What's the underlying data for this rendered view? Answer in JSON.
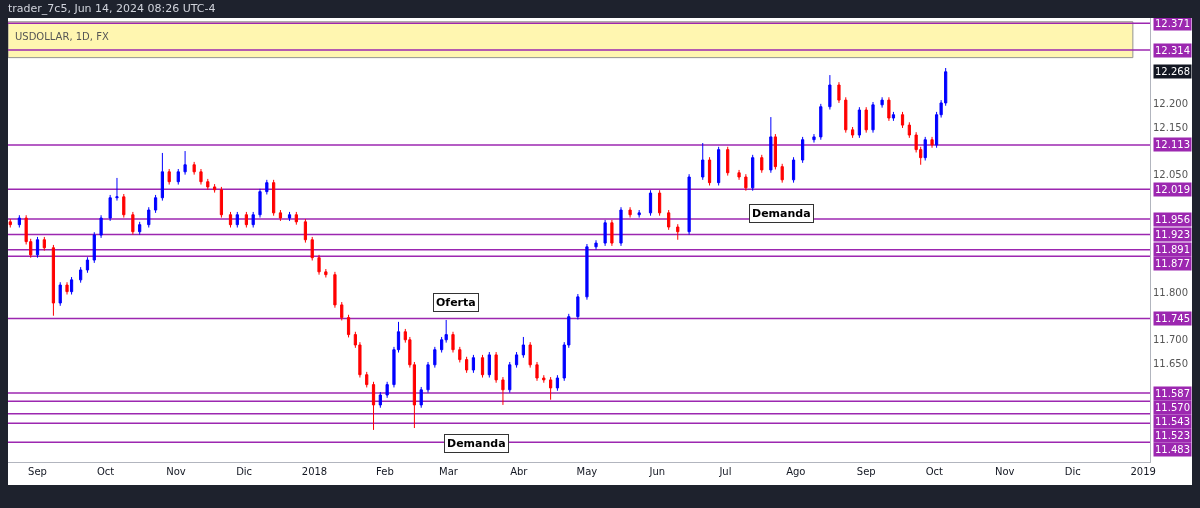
{
  "chart_data": {
    "type": "candlestick",
    "title": "trader_7c5, Jun 14, 2024 08:26 UTC-4",
    "subtitle": "USDOLLAR, 1D, FX",
    "x": [
      "2017-08-20",
      "2017-08-24",
      "2017-08-27",
      "2017-08-29",
      "2017-09-01",
      "2017-09-04",
      "2017-09-08",
      "2017-09-11",
      "2017-09-14",
      "2017-09-16",
      "2017-09-20",
      "2017-09-23",
      "2017-09-26",
      "2017-09-29",
      "2017-10-03",
      "2017-10-06",
      "2017-10-09",
      "2017-10-13",
      "2017-10-16",
      "2017-10-20",
      "2017-10-23",
      "2017-10-26",
      "2017-10-29",
      "2017-11-02",
      "2017-11-05",
      "2017-11-09",
      "2017-11-12",
      "2017-11-15",
      "2017-11-18",
      "2017-11-21",
      "2017-11-25",
      "2017-11-28",
      "2017-12-02",
      "2017-12-05",
      "2017-12-08",
      "2017-12-11",
      "2017-12-14",
      "2017-12-17",
      "2017-12-21",
      "2017-12-24",
      "2017-12-28",
      "2017-12-31",
      "2018-01-03",
      "2018-01-06",
      "2018-01-10",
      "2018-01-13",
      "2018-01-16",
      "2018-01-19",
      "2018-01-21",
      "2018-01-24",
      "2018-01-27",
      "2018-01-30",
      "2018-02-02",
      "2018-02-05",
      "2018-02-07",
      "2018-02-10",
      "2018-02-12",
      "2018-02-14",
      "2018-02-17",
      "2018-02-20",
      "2018-02-23",
      "2018-02-26",
      "2018-02-28",
      "2018-03-03",
      "2018-03-06",
      "2018-03-09",
      "2018-03-12",
      "2018-03-16",
      "2018-03-19",
      "2018-03-22",
      "2018-03-25",
      "2018-03-28",
      "2018-03-31",
      "2018-04-03",
      "2018-04-06",
      "2018-04-09",
      "2018-04-12",
      "2018-04-15",
      "2018-04-18",
      "2018-04-21",
      "2018-04-23",
      "2018-04-27",
      "2018-05-01",
      "2018-05-05",
      "2018-05-09",
      "2018-05-12",
      "2018-05-16",
      "2018-05-20",
      "2018-05-24",
      "2018-05-29",
      "2018-06-02",
      "2018-06-06",
      "2018-06-10",
      "2018-06-15",
      "2018-06-21",
      "2018-06-24",
      "2018-06-28",
      "2018-07-02",
      "2018-07-07",
      "2018-07-10",
      "2018-07-13",
      "2018-07-17",
      "2018-07-21",
      "2018-07-23",
      "2018-07-26",
      "2018-07-31",
      "2018-08-04",
      "2018-08-09",
      "2018-08-12",
      "2018-08-16",
      "2018-08-20",
      "2018-08-23",
      "2018-08-26",
      "2018-08-29",
      "2018-09-01",
      "2018-09-04",
      "2018-09-08",
      "2018-09-11",
      "2018-09-13",
      "2018-09-17",
      "2018-09-20",
      "2018-09-23",
      "2018-09-25",
      "2018-09-27",
      "2018-09-30",
      "2018-10-02",
      "2018-10-04",
      "2018-10-06"
    ],
    "ohlc": [
      [
        11.95,
        11.956,
        11.938,
        11.944
      ],
      [
        11.944,
        11.964,
        11.938,
        11.958
      ],
      [
        11.958,
        11.964,
        11.902,
        11.908
      ],
      [
        11.908,
        11.914,
        11.874,
        11.88
      ],
      [
        11.88,
        11.918,
        11.874,
        11.912
      ],
      [
        11.912,
        11.918,
        11.889,
        11.895
      ],
      [
        11.895,
        11.901,
        11.751,
        11.778
      ],
      [
        11.778,
        11.822,
        11.772,
        11.816
      ],
      [
        11.816,
        11.822,
        11.796,
        11.802
      ],
      [
        11.802,
        11.833,
        11.796,
        11.827
      ],
      [
        11.827,
        11.854,
        11.821,
        11.848
      ],
      [
        11.848,
        11.875,
        11.842,
        11.869
      ],
      [
        11.869,
        11.928,
        11.863,
        11.922
      ],
      [
        11.922,
        11.964,
        11.916,
        11.958
      ],
      [
        11.958,
        12.007,
        11.952,
        12.001
      ],
      [
        12.001,
        12.043,
        11.995,
        12.003
      ],
      [
        12.003,
        12.009,
        11.959,
        11.965
      ],
      [
        11.965,
        11.971,
        11.923,
        11.929
      ],
      [
        11.929,
        11.95,
        11.923,
        11.944
      ],
      [
        11.944,
        11.981,
        11.938,
        11.975
      ],
      [
        11.975,
        12.007,
        11.969,
        12.001
      ],
      [
        12.001,
        12.096,
        11.995,
        12.056
      ],
      [
        12.056,
        12.062,
        12.029,
        12.035
      ],
      [
        12.035,
        12.062,
        12.029,
        12.056
      ],
      [
        12.056,
        12.1,
        12.05,
        12.071
      ],
      [
        12.071,
        12.077,
        12.05,
        12.056
      ],
      [
        12.056,
        12.062,
        12.029,
        12.035
      ],
      [
        12.035,
        12.041,
        12.018,
        12.024
      ],
      [
        12.024,
        12.03,
        12.012,
        12.018
      ],
      [
        12.018,
        12.024,
        11.959,
        11.965
      ],
      [
        11.965,
        11.971,
        11.938,
        11.944
      ],
      [
        11.944,
        11.971,
        11.938,
        11.965
      ],
      [
        11.965,
        11.971,
        11.938,
        11.944
      ],
      [
        11.944,
        11.971,
        11.938,
        11.965
      ],
      [
        11.965,
        12.02,
        11.959,
        12.014
      ],
      [
        12.014,
        12.039,
        12.008,
        12.033
      ],
      [
        12.033,
        12.039,
        11.963,
        11.969
      ],
      [
        11.969,
        11.975,
        11.952,
        11.958
      ],
      [
        11.958,
        11.971,
        11.952,
        11.965
      ],
      [
        11.965,
        11.971,
        11.944,
        11.95
      ],
      [
        11.95,
        11.956,
        11.906,
        11.912
      ],
      [
        11.912,
        11.918,
        11.868,
        11.874
      ],
      [
        11.874,
        11.88,
        11.838,
        11.844
      ],
      [
        11.844,
        11.85,
        11.832,
        11.838
      ],
      [
        11.838,
        11.844,
        11.768,
        11.774
      ],
      [
        11.774,
        11.78,
        11.741,
        11.747
      ],
      [
        11.747,
        11.753,
        11.705,
        11.711
      ],
      [
        11.711,
        11.717,
        11.683,
        11.689
      ],
      [
        11.689,
        11.695,
        11.62,
        11.626
      ],
      [
        11.626,
        11.632,
        11.599,
        11.605
      ],
      [
        11.605,
        11.611,
        11.509,
        11.562
      ],
      [
        11.562,
        11.589,
        11.556,
        11.583
      ],
      [
        11.583,
        11.611,
        11.577,
        11.605
      ],
      [
        11.605,
        11.685,
        11.599,
        11.679
      ],
      [
        11.679,
        11.738,
        11.673,
        11.717
      ],
      [
        11.717,
        11.723,
        11.694,
        11.7
      ],
      [
        11.7,
        11.706,
        11.641,
        11.647
      ],
      [
        11.647,
        11.653,
        11.513,
        11.562
      ],
      [
        11.562,
        11.6,
        11.556,
        11.594
      ],
      [
        11.594,
        11.653,
        11.588,
        11.647
      ],
      [
        11.647,
        11.685,
        11.641,
        11.679
      ],
      [
        11.679,
        11.706,
        11.673,
        11.7
      ],
      [
        11.7,
        11.742,
        11.694,
        11.711
      ],
      [
        11.711,
        11.717,
        11.673,
        11.679
      ],
      [
        11.679,
        11.685,
        11.652,
        11.658
      ],
      [
        11.658,
        11.664,
        11.63,
        11.636
      ],
      [
        11.636,
        11.668,
        11.63,
        11.662
      ],
      [
        11.662,
        11.668,
        11.62,
        11.626
      ],
      [
        11.626,
        11.674,
        11.62,
        11.668
      ],
      [
        11.668,
        11.674,
        11.609,
        11.615
      ],
      [
        11.615,
        11.621,
        11.562,
        11.594
      ],
      [
        11.594,
        11.653,
        11.588,
        11.647
      ],
      [
        11.647,
        11.674,
        11.641,
        11.668
      ],
      [
        11.668,
        11.706,
        11.662,
        11.689
      ],
      [
        11.689,
        11.695,
        11.641,
        11.647
      ],
      [
        11.647,
        11.653,
        11.613,
        11.619
      ],
      [
        11.619,
        11.625,
        11.609,
        11.615
      ],
      [
        11.615,
        11.621,
        11.573,
        11.598
      ],
      [
        11.598,
        11.625,
        11.592,
        11.619
      ],
      [
        11.619,
        11.695,
        11.613,
        11.689
      ],
      [
        11.689,
        11.755,
        11.683,
        11.749
      ],
      [
        11.749,
        11.797,
        11.743,
        11.791
      ],
      [
        11.791,
        11.903,
        11.785,
        11.897
      ],
      [
        11.897,
        11.911,
        11.891,
        11.905
      ],
      [
        11.905,
        11.954,
        11.899,
        11.948
      ],
      [
        11.948,
        11.954,
        11.899,
        11.905
      ],
      [
        11.905,
        11.981,
        11.899,
        11.975
      ],
      [
        11.975,
        11.981,
        11.959,
        11.965
      ],
      [
        11.965,
        11.975,
        11.959,
        11.969
      ],
      [
        11.969,
        12.017,
        11.963,
        12.011
      ],
      [
        12.011,
        12.017,
        11.963,
        11.969
      ],
      [
        11.969,
        11.975,
        11.933,
        11.939
      ],
      [
        11.939,
        11.945,
        11.912,
        11.929
      ],
      [
        11.929,
        12.051,
        11.923,
        12.045
      ],
      [
        12.045,
        12.117,
        12.039,
        12.081
      ],
      [
        12.081,
        12.087,
        12.027,
        12.033
      ],
      [
        12.033,
        12.109,
        12.027,
        12.103
      ],
      [
        12.103,
        12.109,
        12.048,
        12.054
      ],
      [
        12.054,
        12.06,
        12.039,
        12.045
      ],
      [
        12.045,
        12.051,
        12.016,
        12.022
      ],
      [
        12.022,
        12.092,
        12.016,
        12.086
      ],
      [
        12.086,
        12.092,
        12.054,
        12.06
      ],
      [
        12.06,
        12.172,
        12.054,
        12.13
      ],
      [
        12.13,
        12.136,
        12.061,
        12.067
      ],
      [
        12.067,
        12.073,
        12.033,
        12.039
      ],
      [
        12.039,
        12.087,
        12.033,
        12.081
      ],
      [
        12.081,
        12.13,
        12.075,
        12.124
      ],
      [
        12.124,
        12.136,
        12.118,
        12.13
      ],
      [
        12.13,
        12.2,
        12.124,
        12.194
      ],
      [
        12.194,
        12.261,
        12.188,
        12.24
      ],
      [
        12.24,
        12.246,
        12.202,
        12.208
      ],
      [
        12.208,
        12.214,
        12.139,
        12.145
      ],
      [
        12.145,
        12.151,
        12.128,
        12.134
      ],
      [
        12.134,
        12.193,
        12.128,
        12.187
      ],
      [
        12.187,
        12.193,
        12.139,
        12.145
      ],
      [
        12.145,
        12.204,
        12.139,
        12.198
      ],
      [
        12.198,
        12.214,
        12.192,
        12.208
      ],
      [
        12.208,
        12.214,
        12.164,
        12.17
      ],
      [
        12.17,
        12.183,
        12.164,
        12.177
      ],
      [
        12.177,
        12.183,
        12.149,
        12.155
      ],
      [
        12.155,
        12.161,
        12.128,
        12.134
      ],
      [
        12.134,
        12.14,
        12.097,
        12.103
      ],
      [
        12.103,
        12.109,
        12.071,
        12.086
      ],
      [
        12.086,
        12.13,
        12.08,
        12.124
      ],
      [
        12.124,
        12.13,
        12.107,
        12.113
      ],
      [
        12.113,
        12.183,
        12.107,
        12.177
      ],
      [
        12.177,
        12.208,
        12.171,
        12.202
      ],
      [
        12.202,
        12.276,
        12.196,
        12.268
      ]
    ],
    "colors": [
      "#ff0000",
      "#0000ff",
      "#ff0000",
      "#ff0000",
      "#0000ff",
      "#ff0000",
      "#ff0000",
      "#0000ff",
      "#ff0000",
      "#0000ff",
      "#0000ff",
      "#0000ff",
      "#0000ff",
      "#0000ff",
      "#0000ff",
      "#0000ff",
      "#ff0000",
      "#ff0000",
      "#0000ff",
      "#0000ff",
      "#0000ff",
      "#0000ff",
      "#ff0000",
      "#0000ff",
      "#0000ff",
      "#ff0000",
      "#ff0000",
      "#ff0000",
      "#ff0000",
      "#ff0000",
      "#ff0000",
      "#0000ff",
      "#ff0000",
      "#0000ff",
      "#0000ff",
      "#0000ff",
      "#ff0000",
      "#ff0000",
      "#0000ff",
      "#ff0000",
      "#ff0000",
      "#ff0000",
      "#ff0000",
      "#ff0000",
      "#ff0000",
      "#ff0000",
      "#ff0000",
      "#ff0000",
      "#ff0000",
      "#ff0000",
      "#ff0000",
      "#0000ff",
      "#0000ff",
      "#0000ff",
      "#0000ff",
      "#ff0000",
      "#ff0000",
      "#ff0000",
      "#0000ff",
      "#0000ff",
      "#0000ff",
      "#0000ff",
      "#0000ff",
      "#ff0000",
      "#ff0000",
      "#ff0000",
      "#0000ff",
      "#ff0000",
      "#0000ff",
      "#ff0000",
      "#ff0000",
      "#0000ff",
      "#0000ff",
      "#0000ff",
      "#ff0000",
      "#ff0000",
      "#ff0000",
      "#ff0000",
      "#0000ff",
      "#0000ff",
      "#0000ff",
      "#0000ff",
      "#0000ff",
      "#0000ff",
      "#0000ff",
      "#ff0000",
      "#0000ff",
      "#ff0000",
      "#0000ff",
      "#0000ff",
      "#ff0000",
      "#ff0000",
      "#ff0000",
      "#0000ff",
      "#0000ff",
      "#ff0000",
      "#0000ff",
      "#ff0000",
      "#ff0000",
      "#ff0000",
      "#0000ff",
      "#ff0000",
      "#0000ff",
      "#ff0000",
      "#ff0000",
      "#0000ff",
      "#0000ff",
      "#0000ff",
      "#0000ff",
      "#0000ff",
      "#ff0000",
      "#ff0000",
      "#ff0000",
      "#0000ff",
      "#ff0000",
      "#0000ff",
      "#0000ff",
      "#ff0000",
      "#0000ff",
      "#ff0000",
      "#ff0000",
      "#ff0000",
      "#ff0000",
      "#0000ff",
      "#ff0000",
      "#0000ff",
      "#0000ff",
      "#0000ff"
    ],
    "xlim": [
      "2017-08-19",
      "2019-01-04"
    ],
    "xticks": [
      {
        "value": "2017-09-01",
        "label": "Sep"
      },
      {
        "value": "2017-10-01",
        "label": "Oct"
      },
      {
        "value": "2017-11-01",
        "label": "Nov"
      },
      {
        "value": "2017-12-01",
        "label": "Dic"
      },
      {
        "value": "2018-01-01",
        "label": "2018"
      },
      {
        "value": "2018-02-01",
        "label": "Feb"
      },
      {
        "value": "2018-03-01",
        "label": "Mar"
      },
      {
        "value": "2018-04-01",
        "label": "Abr"
      },
      {
        "value": "2018-05-01",
        "label": "May"
      },
      {
        "value": "2018-06-01",
        "label": "Jun"
      },
      {
        "value": "2018-07-01",
        "label": "Jul"
      },
      {
        "value": "2018-08-01",
        "label": "Ago"
      },
      {
        "value": "2018-09-01",
        "label": "Sep"
      },
      {
        "value": "2018-10-01",
        "label": "Oct"
      },
      {
        "value": "2018-11-01",
        "label": "Nov"
      },
      {
        "value": "2018-12-01",
        "label": "Dic"
      },
      {
        "value": "2019-01-01",
        "label": "2019"
      }
    ],
    "ylim": [
      11.441,
      12.382
    ],
    "yticks": [
      {
        "value": 11.65,
        "label": "11.650"
      },
      {
        "value": 11.7,
        "label": "11.700"
      },
      {
        "value": 11.8,
        "label": "11.800"
      },
      {
        "value": 12.05,
        "label": "12.050"
      },
      {
        "value": 12.15,
        "label": "12.150"
      },
      {
        "value": 12.2,
        "label": "12.200"
      }
    ],
    "ref_lines": [
      {
        "axis": "y",
        "value": 12.371,
        "label": "12.371",
        "color": "#9c27b0"
      },
      {
        "axis": "y",
        "value": 12.314,
        "label": "12.314",
        "color": "#9c27b0"
      },
      {
        "axis": "y",
        "value": 12.113,
        "label": "12.113",
        "color": "#9c27b0"
      },
      {
        "axis": "y",
        "value": 12.019,
        "label": "12.019",
        "color": "#9c27b0"
      },
      {
        "axis": "y",
        "value": 11.956,
        "label": "11.956",
        "color": "#9c27b0"
      },
      {
        "axis": "y",
        "value": 11.923,
        "label": "11.923",
        "color": "#9c27b0"
      },
      {
        "axis": "y",
        "value": 11.891,
        "label": "11.891",
        "color": "#9c27b0"
      },
      {
        "axis": "y",
        "value": 11.877,
        "label": "11.877",
        "color": "#9c27b0"
      },
      {
        "axis": "y",
        "value": 11.745,
        "label": "11.745",
        "color": "#9c27b0"
      },
      {
        "axis": "y",
        "value": 11.587,
        "label": "11.587",
        "color": "#9c27b0"
      },
      {
        "axis": "y",
        "value": 11.57,
        "label": "11.570",
        "color": "#9c27b0"
      },
      {
        "axis": "y",
        "value": 11.543,
        "label": "11.543",
        "color": "#9c27b0"
      },
      {
        "axis": "y",
        "value": 11.523,
        "label": "11.523",
        "color": "#9c27b0"
      },
      {
        "axis": "y",
        "value": 11.483,
        "label": "11.483",
        "color": "#9c27b0"
      }
    ],
    "bands": [
      {
        "axis": "y",
        "from": 12.298,
        "to": 12.374,
        "color": "#fff59d"
      }
    ],
    "annotations": [
      "Oferta",
      "Demanda",
      "Demanda",
      "12.268"
    ]
  }
}
